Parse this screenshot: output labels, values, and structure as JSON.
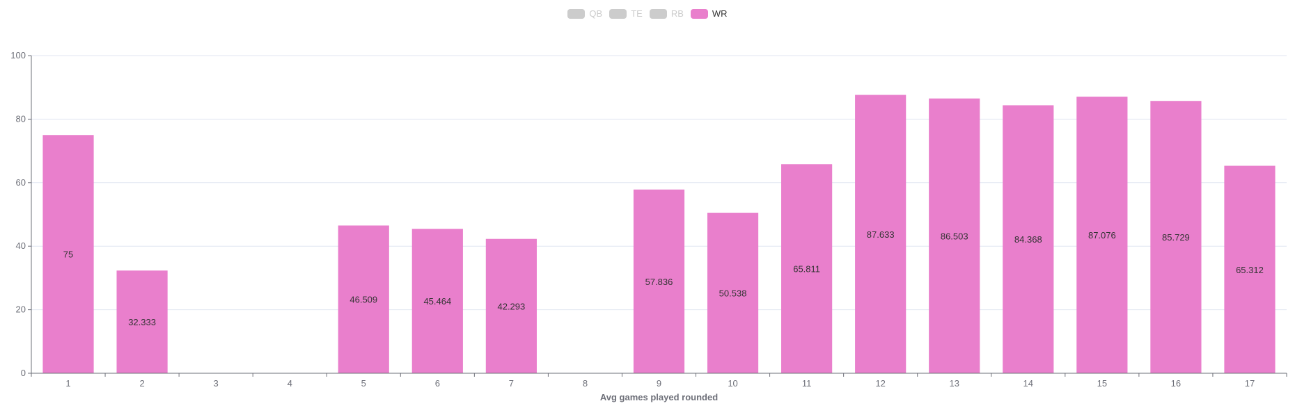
{
  "chart_data": {
    "type": "bar",
    "xlabel": "Avg games played rounded",
    "ylabel": "",
    "ylim": [
      0,
      100
    ],
    "yticks": [
      0,
      20,
      40,
      60,
      80,
      100
    ],
    "grid": true,
    "legend_position": "top-center",
    "categories": [
      "1",
      "2",
      "3",
      "4",
      "5",
      "6",
      "7",
      "8",
      "9",
      "10",
      "11",
      "12",
      "13",
      "14",
      "15",
      "16",
      "17"
    ],
    "legend": [
      {
        "name": "QB",
        "active": false,
        "color": "#cccccc"
      },
      {
        "name": "TE",
        "active": false,
        "color": "#cccccc"
      },
      {
        "name": "RB",
        "active": false,
        "color": "#cccccc"
      },
      {
        "name": "WR",
        "active": true,
        "color": "#e97fcc"
      }
    ],
    "series": [
      {
        "name": "WR",
        "color": "#e97fcc",
        "values": [
          75,
          32.333,
          null,
          null,
          46.509,
          45.464,
          42.293,
          null,
          57.836,
          50.538,
          65.811,
          87.633,
          86.503,
          84.368,
          87.076,
          85.729,
          65.312
        ],
        "labels": [
          "75",
          "32.333",
          "",
          "",
          "46.509",
          "45.464",
          "42.293",
          "",
          "57.836",
          "50.538",
          "65.811",
          "87.633",
          "86.503",
          "84.368",
          "87.076",
          "85.729",
          "65.312"
        ]
      }
    ]
  }
}
